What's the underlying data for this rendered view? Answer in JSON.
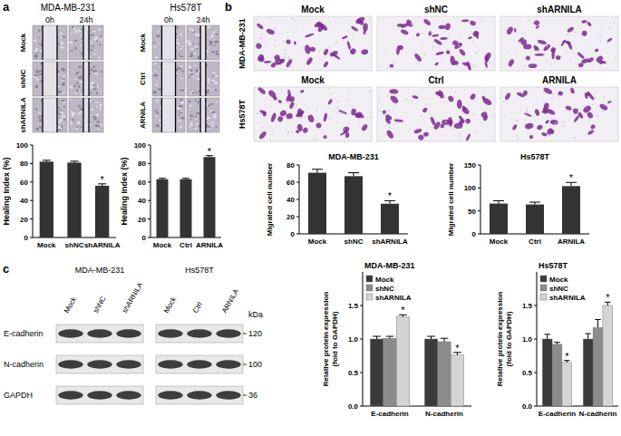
{
  "panel_labels": [
    "a",
    "b",
    "c"
  ],
  "wound_healing": {
    "groups": [
      {
        "title": "MDA-MB-231",
        "columns": [
          "0h",
          "24h"
        ],
        "rows": [
          "Mock",
          "shNC",
          "shARNILA"
        ]
      },
      {
        "title": "Hs578T",
        "columns": [
          "0h",
          "24h"
        ],
        "rows": [
          "Mock",
          "Ctrl",
          "ARNILA"
        ]
      }
    ]
  },
  "transwell": {
    "rows": [
      {
        "label": "MDA-MB-231",
        "columns": [
          "Mock",
          "shNC",
          "shARNILA"
        ]
      },
      {
        "label": "Hs578T",
        "columns": [
          "Mock",
          "Ctrl",
          "ARNILA"
        ]
      }
    ]
  },
  "western_blot": {
    "groups": [
      {
        "title": "MDA-MB-231",
        "lanes": [
          "Mock",
          "shNC",
          "shARNILA"
        ]
      },
      {
        "title": "Hs578T",
        "lanes": [
          "Mock",
          "Ctrl",
          "ARNILA"
        ]
      }
    ],
    "proteins": [
      "E-cadherin",
      "N-cadherin",
      "GAPDH"
    ],
    "kda_title": "kDa",
    "kda": [
      120,
      100,
      36
    ]
  },
  "chart_data": [
    {
      "type": "bar",
      "y_label": [
        "Healing Index (%)"
      ],
      "categories": [
        "Mock",
        "shNC",
        "shARNILA"
      ],
      "values": [
        82,
        81,
        56
      ],
      "errors": [
        1.5,
        1.5,
        2
      ],
      "color": "#333333",
      "ylim": [
        0,
        100
      ],
      "yticks": [
        0,
        20,
        40,
        60,
        80,
        100
      ],
      "annotations": [
        {
          "text": "*",
          "index": 2
        }
      ]
    },
    {
      "type": "bar",
      "y_label": [
        "Healing Index (%)"
      ],
      "categories": [
        "Mock",
        "Ctrl",
        "ARNILA"
      ],
      "values": [
        63,
        63,
        87
      ],
      "errors": [
        1,
        1,
        1.5
      ],
      "color": "#333333",
      "ylim": [
        0,
        100
      ],
      "yticks": [
        0,
        20,
        40,
        60,
        80,
        100
      ],
      "annotations": [
        {
          "text": "*",
          "index": 2
        }
      ]
    },
    {
      "type": "bar",
      "title": "MDA-MB-231",
      "y_label": [
        "Migrated cell number"
      ],
      "categories": [
        "Mock",
        "shNC",
        "shARNILA"
      ],
      "values": [
        71,
        67,
        35
      ],
      "errors": [
        4,
        4,
        3.5
      ],
      "color": "#333333",
      "ylim": [
        0,
        80
      ],
      "yticks": [
        0,
        20,
        40,
        60,
        80
      ],
      "annotations": [
        {
          "text": "*",
          "index": 2
        }
      ]
    },
    {
      "type": "bar",
      "title": "Hs578T",
      "y_label": [
        "Migrated cell number"
      ],
      "categories": [
        "Mock",
        "Ctrl",
        "ARNILA"
      ],
      "values": [
        66,
        64,
        104
      ],
      "errors": [
        6,
        5,
        8
      ],
      "color": "#333333",
      "ylim": [
        0,
        150
      ],
      "yticks": [
        0,
        50,
        100,
        150
      ],
      "annotations": [
        {
          "text": "*",
          "index": 2
        }
      ]
    },
    {
      "type": "bar",
      "title": "MDA-MB-231",
      "y_label": [
        "Relative protein expression",
        "(fold to GAPDH)"
      ],
      "categories": [
        "E-cadherin",
        "N-cadherin"
      ],
      "series": [
        {
          "name": "Mock",
          "color": "#3a3a3a",
          "values": [
            1.0,
            1.0
          ],
          "errors": [
            0.04,
            0.04
          ]
        },
        {
          "name": "shNC",
          "color": "#8c8c8c",
          "values": [
            1.01,
            0.96
          ],
          "errors": [
            0.03,
            0.05
          ]
        },
        {
          "name": "shARNILA",
          "color": "#d4d4d4",
          "values": [
            1.33,
            0.76
          ],
          "errors": [
            0.03,
            0.04
          ]
        }
      ],
      "ylim": [
        0,
        2
      ],
      "yticks": [
        {
          "value": 0,
          "label": "0.0"
        },
        {
          "value": 0.5,
          "label": "0.5"
        },
        {
          "value": 1,
          "label": "1.0"
        },
        {
          "value": 1.5,
          "label": "1.5"
        }
      ],
      "legend": "top-left",
      "annotations": [
        {
          "text": "*",
          "series": 2,
          "index": 0
        },
        {
          "text": "*",
          "series": 2,
          "index": 1
        }
      ]
    },
    {
      "type": "bar",
      "title": "Hs578T",
      "y_label": [
        "Relative protein expression",
        "(fold to GAPDH)"
      ],
      "categories": [
        "E-cadherin",
        "N-cadherin"
      ],
      "series": [
        {
          "name": "Mock",
          "color": "#3a3a3a",
          "values": [
            1.0,
            1.0
          ],
          "errors": [
            0.07,
            0.08
          ]
        },
        {
          "name": "shNC",
          "color": "#8c8c8c",
          "values": [
            0.92,
            1.17
          ],
          "errors": [
            0.03,
            0.12
          ]
        },
        {
          "name": "shARNILA",
          "color": "#d4d4d4",
          "values": [
            0.65,
            1.5
          ],
          "errors": [
            0.03,
            0.05
          ]
        }
      ],
      "ylim": [
        0,
        2
      ],
      "yticks": [
        {
          "value": 0,
          "label": "0.0"
        },
        {
          "value": 0.5,
          "label": "0.5"
        },
        {
          "value": 1,
          "label": "1.0"
        },
        {
          "value": 1.5,
          "label": "1.5"
        }
      ],
      "legend": "top-left",
      "annotations": [
        {
          "text": "*",
          "series": 2,
          "index": 0
        },
        {
          "text": "*",
          "series": 2,
          "index": 1
        }
      ]
    }
  ]
}
